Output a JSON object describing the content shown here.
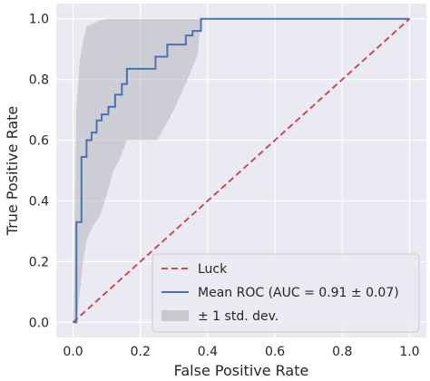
{
  "chart_data": {
    "type": "line",
    "xlabel": "False Positive Rate",
    "ylabel": "True Positive Rate",
    "xlim": [
      -0.05,
      1.05
    ],
    "ylim": [
      -0.05,
      1.05
    ],
    "x_ticks": [
      "0.0",
      "0.2",
      "0.4",
      "0.6",
      "0.8",
      "1.0"
    ],
    "y_ticks": [
      "0.0",
      "0.2",
      "0.4",
      "0.6",
      "0.8",
      "1.0"
    ],
    "grid": true,
    "legend_position": "lower-right",
    "background_color": "#eaeaf2",
    "series": [
      {
        "name": "Luck",
        "style": "dashed",
        "color": "#c44e52",
        "x": [
          0.0,
          1.0
        ],
        "y": [
          0.0,
          1.0
        ]
      },
      {
        "name": "Mean ROC (AUC = 0.91 ± 0.07)",
        "style": "solid",
        "color": "#4c72b0",
        "x": [
          0.0,
          0.01,
          0.01,
          0.025,
          0.025,
          0.04,
          0.04,
          0.055,
          0.055,
          0.07,
          0.07,
          0.085,
          0.085,
          0.105,
          0.105,
          0.125,
          0.125,
          0.145,
          0.145,
          0.16,
          0.16,
          0.215,
          0.215,
          0.245,
          0.245,
          0.28,
          0.28,
          0.335,
          0.335,
          0.355,
          0.355,
          0.38,
          0.38,
          1.0
        ],
        "y": [
          0.0,
          0.0,
          0.33,
          0.33,
          0.545,
          0.545,
          0.6,
          0.6,
          0.625,
          0.625,
          0.665,
          0.665,
          0.685,
          0.685,
          0.71,
          0.71,
          0.75,
          0.75,
          0.785,
          0.785,
          0.835,
          0.835,
          0.835,
          0.835,
          0.875,
          0.875,
          0.915,
          0.915,
          0.945,
          0.945,
          0.96,
          0.96,
          1.0,
          1.0
        ]
      }
    ],
    "band": {
      "name": "± 1 std. dev.",
      "color": "#b0b0b8",
      "x": [
        0.0,
        0.01,
        0.02,
        0.03,
        0.04,
        0.06,
        0.08,
        0.1,
        0.12,
        0.14,
        0.16,
        0.2,
        0.25,
        0.3,
        0.34,
        0.37,
        0.38,
        0.4,
        1.0
      ],
      "upper": [
        0.0,
        0.71,
        0.86,
        0.93,
        0.975,
        0.985,
        0.995,
        1.0,
        1.0,
        1.0,
        1.0,
        1.0,
        1.0,
        1.0,
        1.0,
        1.0,
        1.0,
        1.0,
        1.0
      ],
      "lower": [
        0.0,
        0.0,
        0.1,
        0.2,
        0.27,
        0.32,
        0.35,
        0.42,
        0.5,
        0.54,
        0.6,
        0.6,
        0.6,
        0.7,
        0.8,
        0.88,
        1.0,
        1.0,
        1.0
      ]
    }
  }
}
